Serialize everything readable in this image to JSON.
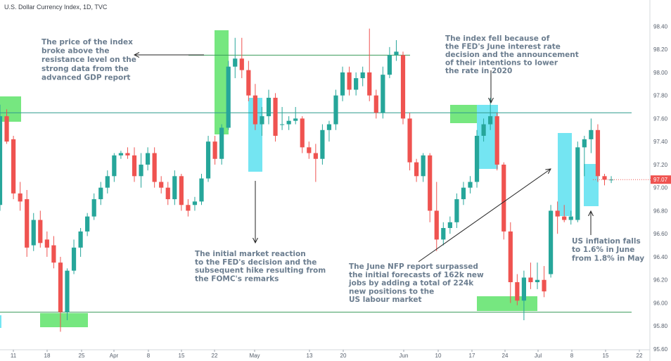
{
  "chart_title": "U.S. Dollar Currency Index, 1D, TVC",
  "chart_data": {
    "type": "candlestick",
    "title": "U.S. Dollar Currency Index, 1D, TVC",
    "ylim": [
      95.6,
      98.5
    ],
    "y_ticks": [
      "98.40",
      "98.20",
      "98.00",
      "97.80",
      "97.60",
      "97.40",
      "97.20",
      "97.00",
      "96.80",
      "96.60",
      "96.40",
      "96.20",
      "96.00",
      "95.80",
      "95.60"
    ],
    "x_ticks": [
      "11",
      "18",
      "25",
      "Apr",
      "8",
      "15",
      "22",
      "May",
      "13",
      "20",
      "Jun",
      "10",
      "17",
      "24",
      "Jul",
      "8",
      "15",
      "22"
    ],
    "last_price": "97.07",
    "resistance_level": 97.65,
    "upper_level": 98.15,
    "support_level": 95.92,
    "candles": [
      {
        "o": 96.85,
        "h": 97.72,
        "l": 96.8,
        "c": 97.62
      },
      {
        "o": 97.62,
        "h": 97.68,
        "l": 97.38,
        "c": 97.4
      },
      {
        "o": 97.42,
        "h": 97.45,
        "l": 96.9,
        "c": 96.95
      },
      {
        "o": 96.95,
        "h": 97.05,
        "l": 96.8,
        "c": 96.88
      },
      {
        "o": 96.9,
        "h": 96.98,
        "l": 96.4,
        "c": 96.48
      },
      {
        "o": 96.5,
        "h": 96.78,
        "l": 96.45,
        "c": 96.72
      },
      {
        "o": 96.72,
        "h": 96.8,
        "l": 96.48,
        "c": 96.52
      },
      {
        "o": 96.55,
        "h": 96.62,
        "l": 96.4,
        "c": 96.48
      },
      {
        "o": 96.5,
        "h": 96.58,
        "l": 96.3,
        "c": 96.35
      },
      {
        "o": 96.35,
        "h": 96.4,
        "l": 95.75,
        "c": 95.92
      },
      {
        "o": 95.92,
        "h": 96.3,
        "l": 95.85,
        "c": 96.28
      },
      {
        "o": 96.28,
        "h": 96.55,
        "l": 96.25,
        "c": 96.48
      },
      {
        "o": 96.48,
        "h": 96.65,
        "l": 96.4,
        "c": 96.62
      },
      {
        "o": 96.62,
        "h": 96.78,
        "l": 96.58,
        "c": 96.75
      },
      {
        "o": 96.75,
        "h": 96.95,
        "l": 96.72,
        "c": 96.9
      },
      {
        "o": 96.9,
        "h": 97.05,
        "l": 96.85,
        "c": 97.0
      },
      {
        "o": 97.0,
        "h": 97.15,
        "l": 96.95,
        "c": 97.1
      },
      {
        "o": 97.1,
        "h": 97.3,
        "l": 97.05,
        "c": 97.28
      },
      {
        "o": 97.28,
        "h": 97.32,
        "l": 97.25,
        "c": 97.3
      },
      {
        "o": 97.3,
        "h": 97.35,
        "l": 97.25,
        "c": 97.28
      },
      {
        "o": 97.28,
        "h": 97.35,
        "l": 97.05,
        "c": 97.1
      },
      {
        "o": 97.1,
        "h": 97.3,
        "l": 97.0,
        "c": 97.2
      },
      {
        "o": 97.2,
        "h": 97.35,
        "l": 97.15,
        "c": 97.3
      },
      {
        "o": 97.3,
        "h": 97.35,
        "l": 97.0,
        "c": 97.05
      },
      {
        "o": 97.05,
        "h": 97.1,
        "l": 96.95,
        "c": 97.0
      },
      {
        "o": 97.0,
        "h": 97.05,
        "l": 96.85,
        "c": 96.9
      },
      {
        "o": 96.9,
        "h": 97.15,
        "l": 96.85,
        "c": 97.1
      },
      {
        "o": 97.1,
        "h": 97.12,
        "l": 96.8,
        "c": 96.85
      },
      {
        "o": 96.85,
        "h": 96.9,
        "l": 96.75,
        "c": 96.8
      },
      {
        "o": 96.85,
        "h": 96.92,
        "l": 96.8,
        "c": 96.88
      },
      {
        "o": 96.88,
        "h": 97.12,
        "l": 96.85,
        "c": 97.08
      },
      {
        "o": 97.08,
        "h": 97.45,
        "l": 97.05,
        "c": 97.4
      },
      {
        "o": 97.4,
        "h": 97.45,
        "l": 97.2,
        "c": 97.25
      },
      {
        "o": 97.25,
        "h": 97.55,
        "l": 97.2,
        "c": 97.52
      },
      {
        "o": 97.52,
        "h": 98.1,
        "l": 97.5,
        "c": 98.05
      },
      {
        "o": 98.05,
        "h": 98.3,
        "l": 97.95,
        "c": 98.12
      },
      {
        "o": 98.12,
        "h": 98.3,
        "l": 97.95,
        "c": 98.02
      },
      {
        "o": 98.02,
        "h": 98.1,
        "l": 97.75,
        "c": 97.8
      },
      {
        "o": 97.8,
        "h": 97.9,
        "l": 97.5,
        "c": 97.55
      },
      {
        "o": 97.55,
        "h": 97.7,
        "l": 97.45,
        "c": 97.62
      },
      {
        "o": 97.62,
        "h": 97.85,
        "l": 97.55,
        "c": 97.78
      },
      {
        "o": 97.78,
        "h": 97.82,
        "l": 97.4,
        "c": 97.45
      },
      {
        "o": 97.55,
        "h": 97.7,
        "l": 97.5,
        "c": 97.55
      },
      {
        "o": 97.55,
        "h": 97.62,
        "l": 97.5,
        "c": 97.58
      },
      {
        "o": 97.58,
        "h": 97.7,
        "l": 97.55,
        "c": 97.6
      },
      {
        "o": 97.6,
        "h": 97.62,
        "l": 97.3,
        "c": 97.35
      },
      {
        "o": 97.35,
        "h": 97.4,
        "l": 97.25,
        "c": 97.3
      },
      {
        "o": 97.3,
        "h": 97.38,
        "l": 97.05,
        "c": 97.25
      },
      {
        "o": 97.25,
        "h": 97.55,
        "l": 97.2,
        "c": 97.5
      },
      {
        "o": 97.5,
        "h": 97.58,
        "l": 97.4,
        "c": 97.55
      },
      {
        "o": 97.55,
        "h": 97.85,
        "l": 97.5,
        "c": 97.8
      },
      {
        "o": 97.8,
        "h": 98.05,
        "l": 97.75,
        "c": 98.0
      },
      {
        "o": 98.0,
        "h": 98.05,
        "l": 97.8,
        "c": 97.85
      },
      {
        "o": 97.85,
        "h": 98.0,
        "l": 97.8,
        "c": 97.95
      },
      {
        "o": 97.95,
        "h": 98.05,
        "l": 97.88,
        "c": 98.0
      },
      {
        "o": 98.0,
        "h": 98.38,
        "l": 97.75,
        "c": 97.8
      },
      {
        "o": 97.8,
        "h": 97.85,
        "l": 97.6,
        "c": 97.65
      },
      {
        "o": 97.65,
        "h": 98.05,
        "l": 97.6,
        "c": 97.98
      },
      {
        "o": 97.98,
        "h": 98.22,
        "l": 97.95,
        "c": 98.15
      },
      {
        "o": 98.15,
        "h": 98.28,
        "l": 98.1,
        "c": 98.18
      },
      {
        "o": 98.15,
        "h": 98.18,
        "l": 97.55,
        "c": 97.6
      },
      {
        "o": 97.6,
        "h": 97.65,
        "l": 97.15,
        "c": 97.22
      },
      {
        "o": 97.22,
        "h": 97.25,
        "l": 97.05,
        "c": 97.1
      },
      {
        "o": 97.1,
        "h": 97.3,
        "l": 97.05,
        "c": 97.28
      },
      {
        "o": 97.28,
        "h": 97.3,
        "l": 96.7,
        "c": 96.8
      },
      {
        "o": 96.8,
        "h": 97.05,
        "l": 96.45,
        "c": 96.55
      },
      {
        "o": 96.55,
        "h": 96.7,
        "l": 96.5,
        "c": 96.65
      },
      {
        "o": 96.65,
        "h": 96.75,
        "l": 96.6,
        "c": 96.7
      },
      {
        "o": 96.7,
        "h": 96.95,
        "l": 96.65,
        "c": 96.9
      },
      {
        "o": 96.9,
        "h": 97.05,
        "l": 96.85,
        "c": 97.0
      },
      {
        "o": 97.0,
        "h": 97.1,
        "l": 96.95,
        "c": 97.05
      },
      {
        "o": 97.05,
        "h": 97.5,
        "l": 97.0,
        "c": 97.45
      },
      {
        "o": 97.45,
        "h": 97.6,
        "l": 97.4,
        "c": 97.55
      },
      {
        "o": 97.55,
        "h": 97.78,
        "l": 97.5,
        "c": 97.62
      },
      {
        "o": 97.62,
        "h": 97.65,
        "l": 97.15,
        "c": 97.2
      },
      {
        "o": 97.2,
        "h": 97.22,
        "l": 96.55,
        "c": 96.62
      },
      {
        "o": 96.62,
        "h": 96.7,
        "l": 96.0,
        "c": 96.18
      },
      {
        "o": 96.18,
        "h": 96.25,
        "l": 95.98,
        "c": 96.02
      },
      {
        "o": 96.02,
        "h": 96.28,
        "l": 95.85,
        "c": 96.22
      },
      {
        "o": 96.22,
        "h": 96.35,
        "l": 96.12,
        "c": 96.18
      },
      {
        "o": 96.18,
        "h": 96.35,
        "l": 96.12,
        "c": 96.2
      },
      {
        "o": 96.2,
        "h": 96.32,
        "l": 96.05,
        "c": 96.1
      },
      {
        "o": 96.25,
        "h": 96.85,
        "l": 96.22,
        "c": 96.8
      },
      {
        "o": 96.8,
        "h": 96.88,
        "l": 96.6,
        "c": 96.75
      },
      {
        "o": 96.75,
        "h": 96.85,
        "l": 96.7,
        "c": 96.72
      },
      {
        "o": 96.72,
        "h": 96.8,
        "l": 96.68,
        "c": 96.75
      },
      {
        "o": 96.72,
        "h": 97.4,
        "l": 96.7,
        "c": 97.35
      },
      {
        "o": 97.35,
        "h": 97.45,
        "l": 97.1,
        "c": 97.42
      },
      {
        "o": 97.42,
        "h": 97.6,
        "l": 97.3,
        "c": 97.5
      },
      {
        "o": 97.5,
        "h": 97.55,
        "l": 97.05,
        "c": 97.1
      },
      {
        "o": 97.1,
        "h": 97.12,
        "l": 97.02,
        "c": 97.07
      },
      {
        "o": 97.07,
        "h": 97.1,
        "l": 97.04,
        "c": 97.07
      }
    ],
    "annotations": [
      {
        "id": "annotation-gdp",
        "lines": [
          "The price of the index",
          "broke above the",
          "resistance level on the",
          "strong data from the",
          "advanced GDP report"
        ]
      },
      {
        "id": "annotation-fed-fall",
        "lines": [
          "The index fell because of",
          "the FED's June interest rate",
          "decision and the announcement",
          "of their intentions to lower",
          "the rate in 2020"
        ]
      },
      {
        "id": "annotation-fomc",
        "lines": [
          "The initial market reaction",
          "to the FED's decision and the",
          "subsequent hike resulting from",
          "the FOMC's remarks"
        ]
      },
      {
        "id": "annotation-nfp",
        "lines": [
          "The June NFP report surpassed",
          "the initial forecasts of 162k new",
          "jobs by adding a total of 224k",
          "new positions to the",
          "US labour market"
        ]
      },
      {
        "id": "annotation-inflation",
        "lines": [
          "US inflation falls",
          "to 1.6% in June",
          "from 1.8% in May"
        ]
      }
    ]
  },
  "colors": {
    "up": "#26a69a",
    "down": "#ef5350",
    "level_line": "#3a9c5a",
    "resistance_line": "#2e9a8e",
    "highlight_green": "#5ee36a",
    "highlight_cyan": "#5ce1f0",
    "price_tag": "#ef5350",
    "annotation_text": "#6b7d8f"
  }
}
